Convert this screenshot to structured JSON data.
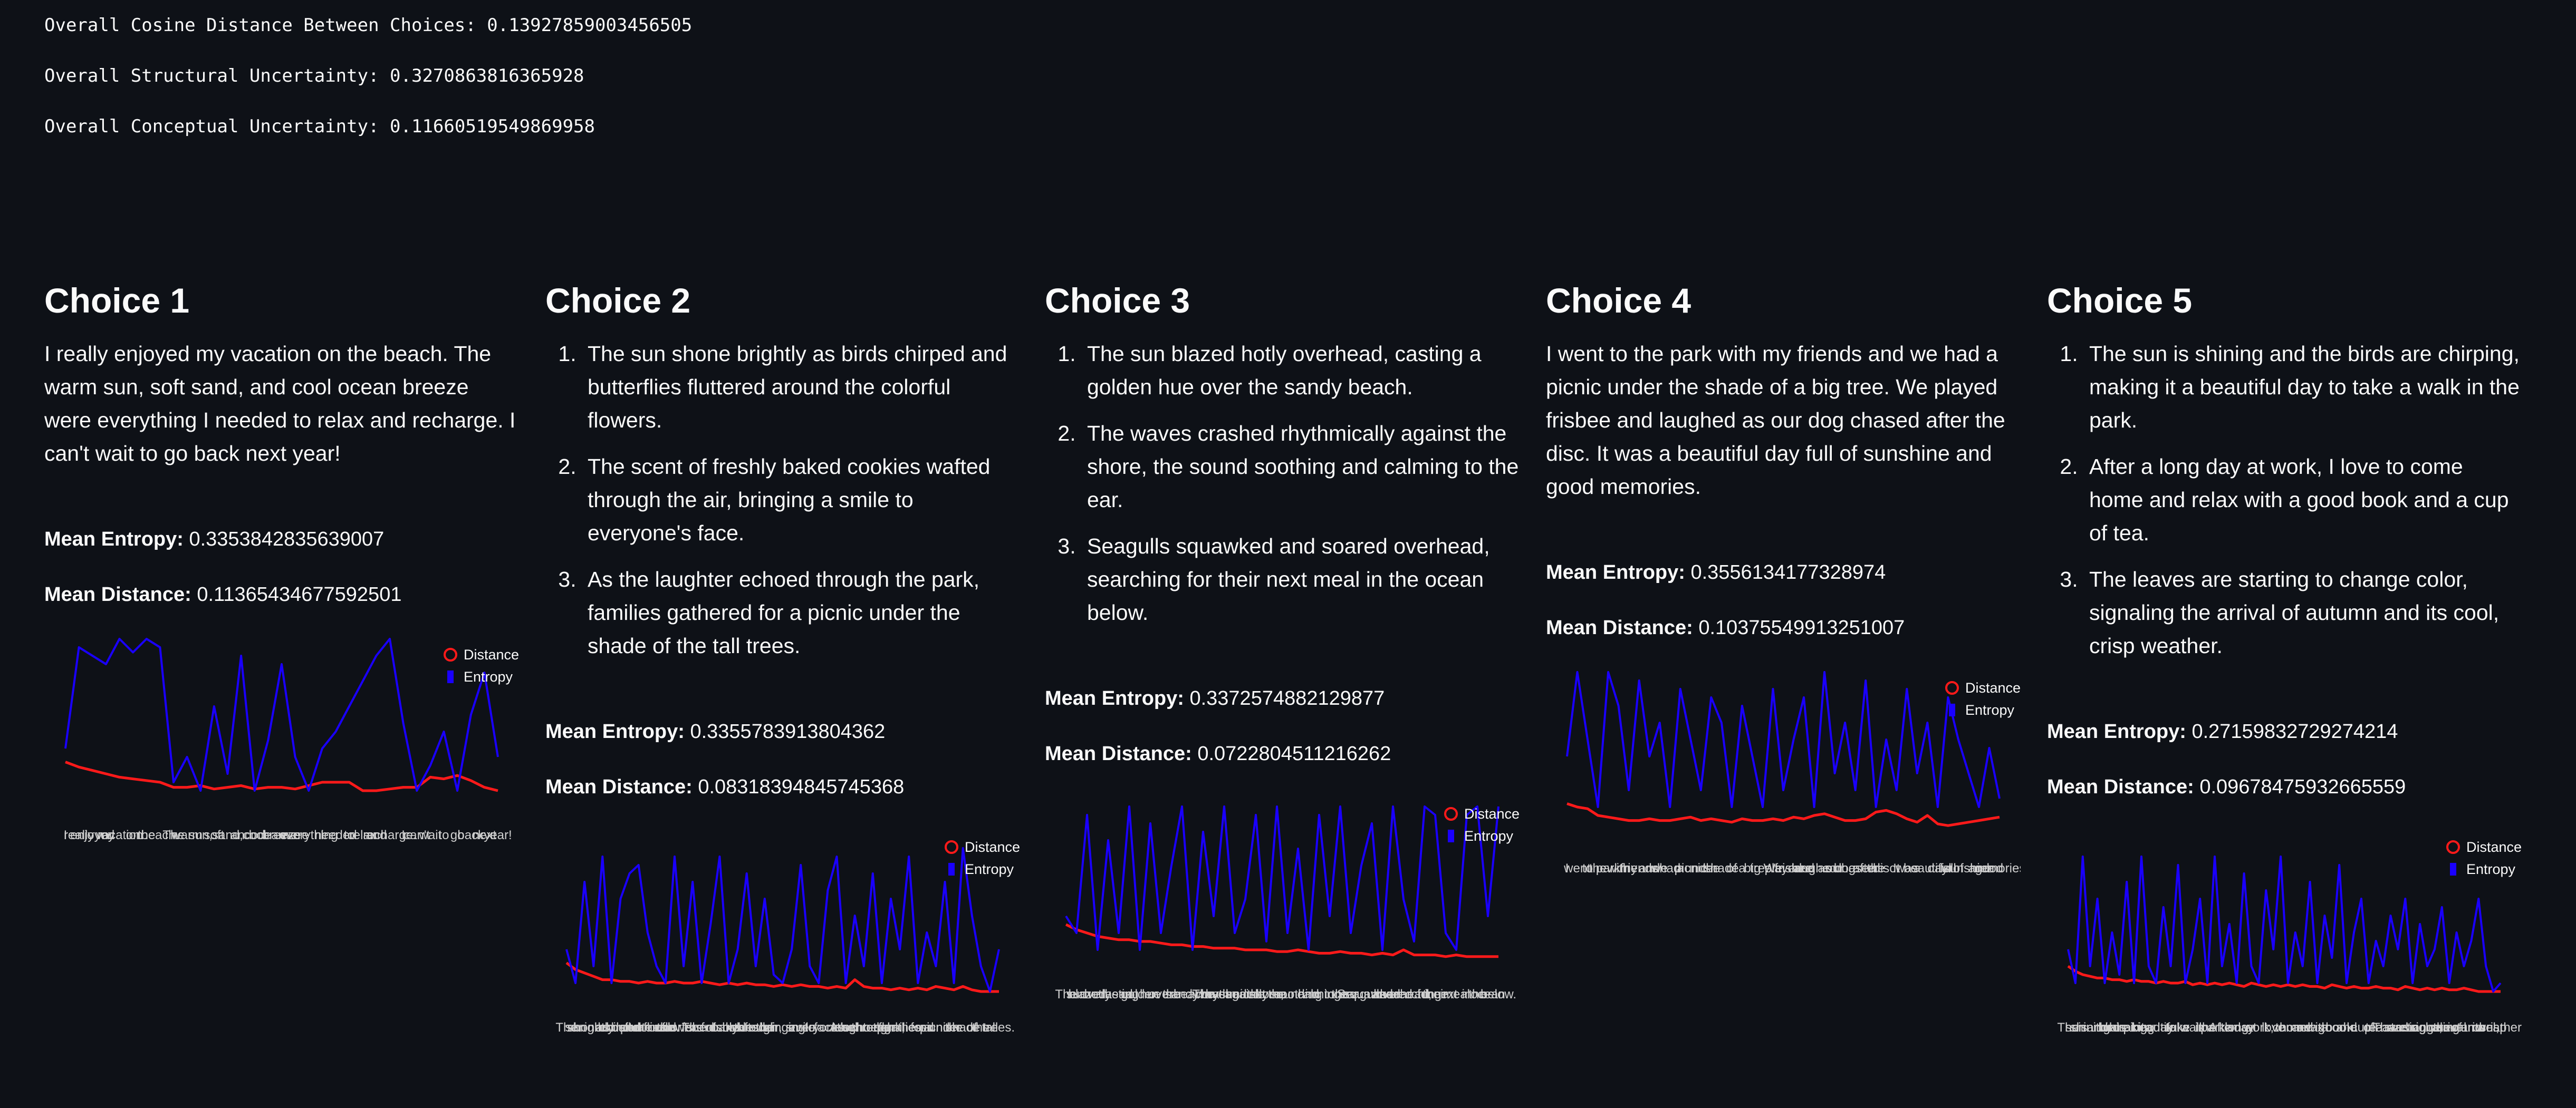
{
  "metrics": [
    {
      "label": "Overall Cosine Distance Between Choices:",
      "value": 0.13927859003456505
    },
    {
      "label": "Overall Structural Uncertainty:",
      "value": 0.3270863816365928
    },
    {
      "label": "Overall Conceptual Uncertainty:",
      "value": 0.11660519549869958
    }
  ],
  "choices": [
    {
      "title": "Choice 1",
      "paragraph": "I really enjoyed my vacation on the beach. The warm sun, soft sand, and cool ocean breeze were everything I needed to relax and recharge. I can't wait to go back next year!",
      "mean_entropy": {
        "label": "Mean Entropy:",
        "value": 0.3353842835639007
      },
      "mean_distance": {
        "label": "Mean Distance:",
        "value": 0.11365434677592501
      }
    },
    {
      "title": "Choice 2",
      "items": [
        "The sun shone brightly as birds chirped and butterflies fluttered around the colorful flowers.",
        "The scent of freshly baked cookies wafted through the air, bringing a smile to everyone's face.",
        "As the laughter echoed through the park, families gathered for a picnic under the shade of the tall trees."
      ],
      "mean_entropy": {
        "label": "Mean Entropy:",
        "value": 0.3355783913804362
      },
      "mean_distance": {
        "label": "Mean Distance:",
        "value": 0.08318394845745368
      }
    },
    {
      "title": "Choice 3",
      "items": [
        "The sun blazed hotly overhead, casting a golden hue over the sandy beach.",
        "The waves crashed rhythmically against the shore, the sound soothing and calming to the ear.",
        "Seagulls squawked and soared overhead, searching for their next meal in the ocean below."
      ],
      "mean_entropy": {
        "label": "Mean Entropy:",
        "value": 0.3372574882129877
      },
      "mean_distance": {
        "label": "Mean Distance:",
        "value": 0.0722804511216262
      }
    },
    {
      "title": "Choice 4",
      "paragraph": "I went to the park with my friends and we had a picnic under the shade of a big tree. We played frisbee and laughed as our dog chased after the disc. It was a beautiful day full of sunshine and good memories.",
      "mean_entropy": {
        "label": "Mean Entropy:",
        "value": 0.3556134177328974
      },
      "mean_distance": {
        "label": "Mean Distance:",
        "value": 0.10375549913251007
      }
    },
    {
      "title": "Choice 5",
      "items": [
        "The sun is shining and the birds are chirping, making it a beautiful day to take a walk in the park.",
        "After a long day at work, I love to come home and relax with a good book and a cup of tea.",
        "The leaves are starting to change color, signaling the arrival of autumn and its cool, crisp weather."
      ],
      "mean_entropy": {
        "label": "Mean Entropy:",
        "value": 0.27159832729274214
      },
      "mean_distance": {
        "label": "Mean Distance:",
        "value": 0.09678475932665559
      }
    }
  ],
  "chart_data": [
    {
      "type": "line",
      "ylim": [
        0,
        1
      ],
      "categories": [
        "I",
        "really",
        "enjoyed",
        "my",
        "vacation",
        "on",
        "the",
        "beach.",
        "The",
        "warm",
        "sun,",
        "soft",
        "sand,",
        "and",
        "cool",
        "ocean",
        "breeze",
        "were",
        "everything",
        "I",
        "needed",
        "to",
        "relax",
        "and",
        "recharge.",
        "I",
        "can't",
        "wait",
        "to",
        "go",
        "back",
        "next",
        "year!"
      ],
      "series": [
        {
          "name": "Distance",
          "color": "#ff1a1a",
          "values": [
            0.27,
            0.24,
            0.22,
            0.2,
            0.18,
            0.17,
            0.16,
            0.15,
            0.12,
            0.12,
            0.13,
            0.11,
            0.12,
            0.13,
            0.11,
            0.12,
            0.12,
            0.11,
            0.13,
            0.15,
            0.15,
            0.15,
            0.1,
            0.1,
            0.11,
            0.12,
            0.12,
            0.18,
            0.17,
            0.19,
            0.16,
            0.12,
            0.1
          ]
        },
        {
          "name": "Entropy",
          "color": "#1a00ff",
          "values": [
            0.35,
            0.95,
            0.9,
            0.85,
            1.0,
            0.92,
            1.0,
            0.95,
            0.15,
            0.3,
            0.1,
            0.6,
            0.2,
            0.9,
            0.1,
            0.4,
            0.85,
            0.3,
            0.1,
            0.35,
            0.45,
            0.6,
            0.75,
            0.9,
            1.0,
            0.5,
            0.1,
            0.25,
            0.45,
            0.1,
            0.55,
            0.8,
            0.3
          ]
        }
      ]
    },
    {
      "type": "line",
      "ylim": [
        0,
        1
      ],
      "categories": [
        "The",
        "sun",
        "shone",
        "brightly",
        "as",
        "birds",
        "chirped",
        "and",
        "butterflies",
        "fluttered",
        "around",
        "the",
        "colorful",
        "flowers.",
        "The",
        "scent",
        "of",
        "freshly",
        "baked",
        "cookies",
        "wafted",
        "through",
        "the",
        "air,",
        "bringing",
        "a",
        "smile",
        "to",
        "everyone's",
        "face.",
        "As",
        "the",
        "laughter",
        "echoed",
        "through",
        "the",
        "park,",
        "families",
        "gathered",
        "for",
        "a",
        "picnic",
        "under",
        "the",
        "shade",
        "of",
        "the",
        "tall",
        "trees."
      ],
      "series": [
        {
          "name": "Distance",
          "color": "#ff1a1a",
          "values": [
            0.22,
            0.18,
            0.16,
            0.14,
            0.12,
            0.12,
            0.11,
            0.11,
            0.1,
            0.11,
            0.1,
            0.1,
            0.11,
            0.1,
            0.1,
            0.11,
            0.1,
            0.09,
            0.1,
            0.09,
            0.1,
            0.09,
            0.09,
            0.08,
            0.09,
            0.08,
            0.09,
            0.08,
            0.08,
            0.07,
            0.08,
            0.07,
            0.12,
            0.08,
            0.07,
            0.07,
            0.06,
            0.07,
            0.06,
            0.07,
            0.06,
            0.08,
            0.07,
            0.06,
            0.08,
            0.06,
            0.05,
            0.05,
            0.05
          ]
        },
        {
          "name": "Entropy",
          "color": "#1a00ff",
          "values": [
            0.3,
            0.1,
            0.7,
            0.2,
            0.85,
            0.1,
            0.6,
            0.75,
            0.8,
            0.4,
            0.2,
            0.1,
            0.85,
            0.2,
            0.7,
            0.1,
            0.45,
            0.85,
            0.1,
            0.3,
            0.75,
            0.2,
            0.6,
            0.15,
            0.1,
            0.3,
            0.8,
            0.2,
            0.1,
            0.65,
            0.85,
            0.1,
            0.5,
            0.2,
            0.75,
            0.1,
            0.6,
            0.3,
            0.85,
            0.1,
            0.4,
            0.2,
            0.7,
            0.1,
            0.9,
            0.5,
            0.2,
            0.05,
            0.3
          ]
        }
      ]
    },
    {
      "type": "line",
      "ylim": [
        0,
        1
      ],
      "categories": [
        "The",
        "sun",
        "blazed",
        "hotly",
        "overhead,",
        "casting",
        "a",
        "golden",
        "hue",
        "over",
        "the",
        "sandy",
        "beach.",
        "The",
        "waves",
        "crashed",
        "rhythmically",
        "against",
        "the",
        "shore,",
        "the",
        "sound",
        "soothing",
        "and",
        "calming",
        "to",
        "the",
        "ear.",
        "Seagulls",
        "squawked",
        "and",
        "soared",
        "overhead,",
        "searching",
        "for",
        "their",
        "next",
        "meal",
        "in",
        "the",
        "ocean",
        "below."
      ],
      "series": [
        {
          "name": "Distance",
          "color": "#ff1a1a",
          "values": [
            0.25,
            0.22,
            0.2,
            0.18,
            0.17,
            0.16,
            0.16,
            0.15,
            0.15,
            0.14,
            0.13,
            0.13,
            0.12,
            0.12,
            0.11,
            0.11,
            0.11,
            0.1,
            0.1,
            0.1,
            0.09,
            0.09,
            0.1,
            0.09,
            0.08,
            0.08,
            0.09,
            0.08,
            0.08,
            0.07,
            0.08,
            0.07,
            0.1,
            0.07,
            0.07,
            0.07,
            0.06,
            0.07,
            0.06,
            0.06,
            0.06,
            0.06
          ]
        },
        {
          "name": "Entropy",
          "color": "#1a00ff",
          "values": [
            0.3,
            0.2,
            0.9,
            0.1,
            0.75,
            0.2,
            0.95,
            0.1,
            0.85,
            0.2,
            0.6,
            0.95,
            0.1,
            0.8,
            0.3,
            0.95,
            0.2,
            0.4,
            0.9,
            0.15,
            0.95,
            0.2,
            0.7,
            0.1,
            0.9,
            0.3,
            0.95,
            0.2,
            0.6,
            0.85,
            0.1,
            0.95,
            0.4,
            0.15,
            0.95,
            0.9,
            0.2,
            0.1,
            0.9,
            0.95,
            0.3,
            0.95
          ]
        }
      ]
    },
    {
      "type": "line",
      "ylim": [
        0,
        1
      ],
      "categories": [
        "I",
        "went",
        "to",
        "the",
        "park",
        "with",
        "my",
        "friends",
        "and",
        "we",
        "had",
        "a",
        "picnic",
        "under",
        "the",
        "shade",
        "of",
        "a",
        "big",
        "tree.",
        "We",
        "played",
        "frisbee",
        "and",
        "laughed",
        "as",
        "our",
        "dog",
        "chased",
        "after",
        "the",
        "disc.",
        "It",
        "was",
        "a",
        "beautiful",
        "day",
        "full",
        "of",
        "sunshine",
        "and",
        "good",
        "memories."
      ],
      "series": [
        {
          "name": "Distance",
          "color": "#ff1a1a",
          "values": [
            0.22,
            0.2,
            0.19,
            0.15,
            0.14,
            0.13,
            0.12,
            0.12,
            0.13,
            0.12,
            0.12,
            0.13,
            0.14,
            0.12,
            0.13,
            0.12,
            0.11,
            0.13,
            0.12,
            0.12,
            0.13,
            0.12,
            0.14,
            0.13,
            0.15,
            0.16,
            0.14,
            0.12,
            0.12,
            0.13,
            0.17,
            0.18,
            0.16,
            0.13,
            0.11,
            0.15,
            0.1,
            0.09,
            0.1,
            0.11,
            0.12,
            0.13,
            0.14
          ]
        },
        {
          "name": "Entropy",
          "color": "#1a00ff",
          "values": [
            0.5,
            1.0,
            0.6,
            0.2,
            1.0,
            0.8,
            0.3,
            0.95,
            0.5,
            0.7,
            0.2,
            0.9,
            0.6,
            0.3,
            0.85,
            0.7,
            0.2,
            0.8,
            0.5,
            0.2,
            0.9,
            0.3,
            0.6,
            0.85,
            0.2,
            1.0,
            0.4,
            0.7,
            0.3,
            0.95,
            0.2,
            0.6,
            0.3,
            0.9,
            0.4,
            0.7,
            0.2,
            0.85,
            0.6,
            0.4,
            0.2,
            0.55,
            0.25
          ]
        }
      ]
    },
    {
      "type": "line",
      "ylim": [
        0,
        1
      ],
      "categories": [
        "The",
        "sun",
        "is",
        "shining",
        "and",
        "the",
        "birds",
        "are",
        "chirping,",
        "making",
        "it",
        "a",
        "beautiful",
        "day",
        "to",
        "take",
        "a",
        "walk",
        "in",
        "the",
        "park.",
        "After",
        "a",
        "long",
        "day",
        "at",
        "work,",
        "I",
        "love",
        "to",
        "come",
        "home",
        "and",
        "relax",
        "with",
        "a",
        "good",
        "book",
        "and",
        "a",
        "cup",
        "of",
        "tea.",
        "The",
        "leaves",
        "are",
        "starting",
        "to",
        "change",
        "color,",
        "signaling",
        "the",
        "arrival",
        "of",
        "autumn",
        "and",
        "its",
        "cool,",
        "crisp",
        "weather."
      ],
      "series": [
        {
          "name": "Distance",
          "color": "#ff1a1a",
          "values": [
            0.2,
            0.17,
            0.15,
            0.14,
            0.13,
            0.13,
            0.12,
            0.12,
            0.11,
            0.12,
            0.11,
            0.11,
            0.1,
            0.11,
            0.1,
            0.1,
            0.11,
            0.09,
            0.1,
            0.09,
            0.1,
            0.09,
            0.1,
            0.09,
            0.08,
            0.1,
            0.09,
            0.08,
            0.09,
            0.08,
            0.09,
            0.08,
            0.09,
            0.08,
            0.08,
            0.07,
            0.09,
            0.08,
            0.07,
            0.08,
            0.07,
            0.07,
            0.08,
            0.07,
            0.07,
            0.06,
            0.08,
            0.07,
            0.06,
            0.07,
            0.06,
            0.07,
            0.06,
            0.06,
            0.07,
            0.06,
            0.05,
            0.05,
            0.05,
            0.05
          ]
        },
        {
          "name": "Entropy",
          "color": "#1a00ff",
          "values": [
            0.3,
            0.1,
            0.85,
            0.2,
            0.6,
            0.1,
            0.4,
            0.15,
            0.7,
            0.1,
            0.85,
            0.2,
            0.1,
            0.55,
            0.2,
            0.8,
            0.1,
            0.3,
            0.6,
            0.1,
            0.85,
            0.2,
            0.45,
            0.1,
            0.75,
            0.2,
            0.1,
            0.65,
            0.3,
            0.85,
            0.1,
            0.4,
            0.2,
            0.7,
            0.1,
            0.5,
            0.25,
            0.8,
            0.1,
            0.4,
            0.6,
            0.1,
            0.35,
            0.2,
            0.5,
            0.3,
            0.6,
            0.1,
            0.45,
            0.2,
            0.3,
            0.55,
            0.1,
            0.4,
            0.2,
            0.35,
            0.6,
            0.2,
            0.05,
            0.1
          ]
        }
      ]
    }
  ]
}
